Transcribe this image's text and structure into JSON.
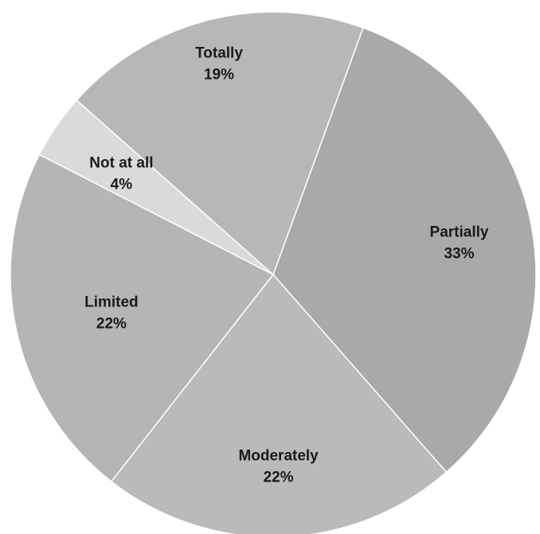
{
  "chart_data": {
    "type": "pie",
    "title": "",
    "legend": "none",
    "slices": [
      {
        "label": "Partially",
        "value": 33,
        "percent_text": "33%",
        "color": "#a7a9ab"
      },
      {
        "label": "Moderately",
        "value": 22,
        "percent_text": "22%",
        "color": "#b8babc"
      },
      {
        "label": "Limited",
        "value": 22,
        "percent_text": "22%",
        "color": "#b3b5b7"
      },
      {
        "label": "Not at all",
        "value": 4,
        "percent_text": "4%",
        "color": "#d9dadb"
      },
      {
        "label": "Totally",
        "value": 19,
        "percent_text": "19%",
        "color": "#b5b7b9"
      }
    ]
  }
}
